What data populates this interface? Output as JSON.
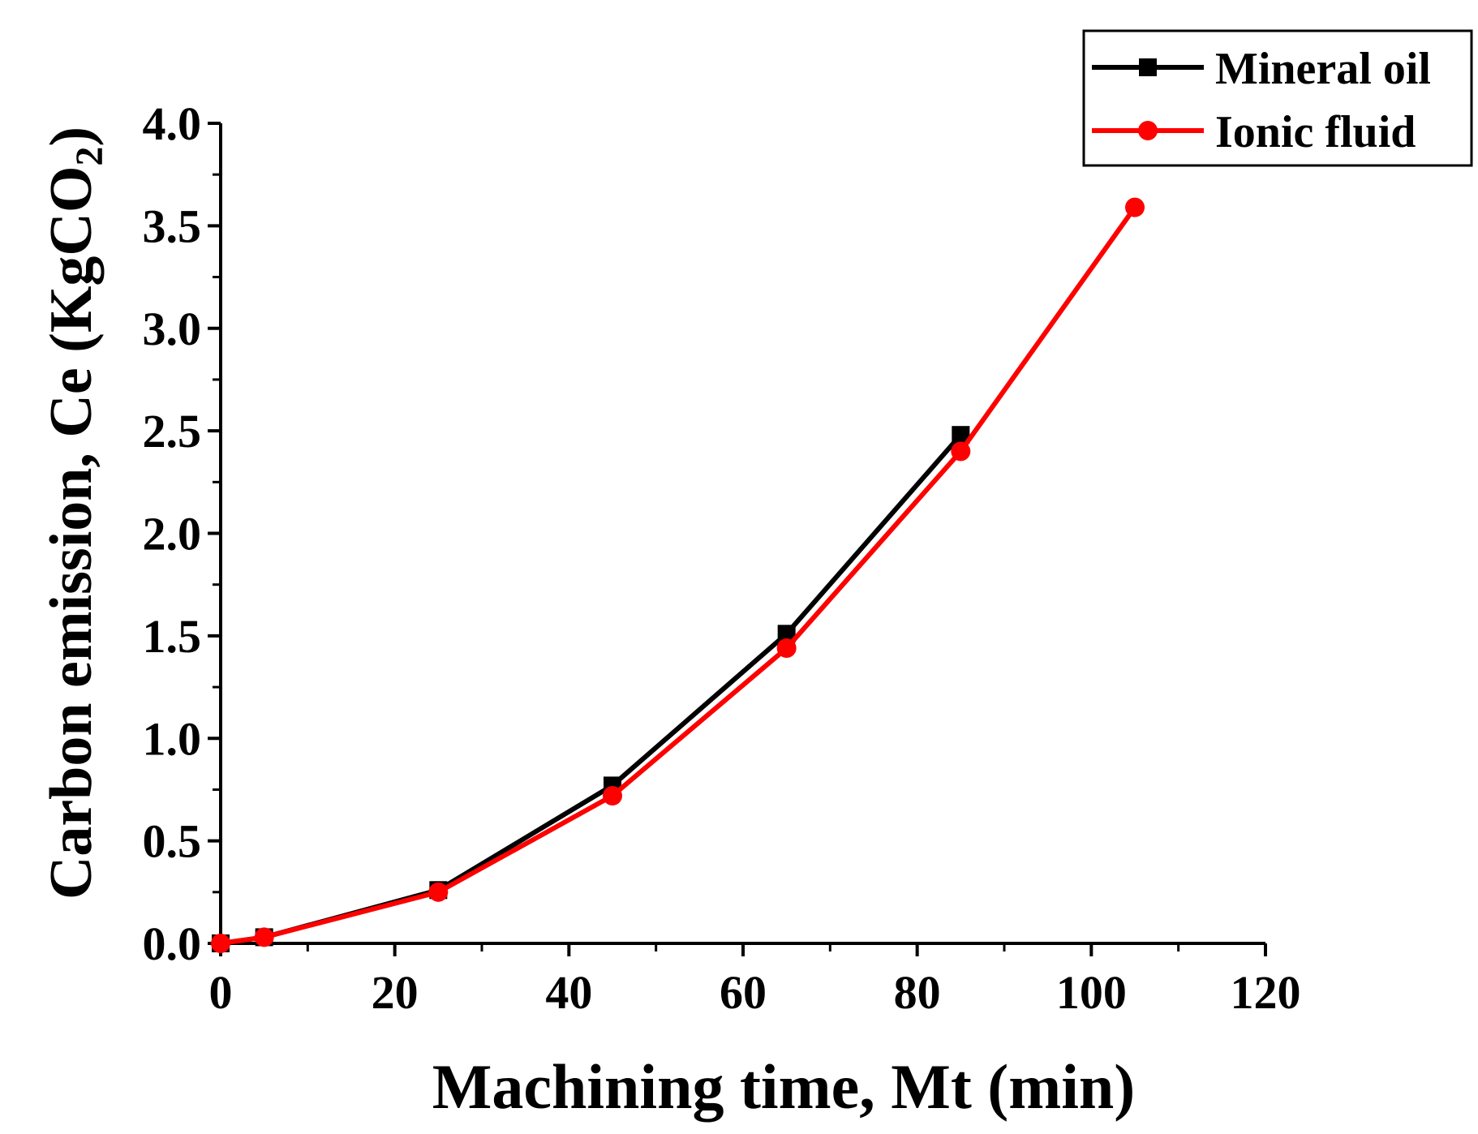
{
  "chart_data": {
    "type": "line",
    "title": "",
    "xlabel": "Machining time, Mt (min)",
    "ylabel": "Carbon emission, Ce (KgCO",
    "ylabel_subscript": "2",
    "ylabel_close": ")",
    "xlim": [
      0,
      120
    ],
    "ylim": [
      0,
      4.0
    ],
    "x_ticks": [
      0,
      20,
      40,
      60,
      80,
      100,
      120
    ],
    "x_tick_labels": [
      "0",
      "20",
      "40",
      "60",
      "80",
      "100",
      "120"
    ],
    "y_ticks": [
      0.0,
      0.5,
      1.0,
      1.5,
      2.0,
      2.5,
      3.0,
      3.5,
      4.0
    ],
    "y_tick_labels": [
      "0.0",
      "0.5",
      "1.0",
      "1.5",
      "2.0",
      "2.5",
      "3.0",
      "3.5",
      "4.0"
    ],
    "grid": false,
    "legend_position": "top-right",
    "series": [
      {
        "name": "Mineral oil",
        "color": "#000000",
        "marker": "square",
        "x": [
          0,
          5,
          25,
          45,
          65,
          85
        ],
        "y": [
          0.0,
          0.03,
          0.26,
          0.77,
          1.51,
          2.48
        ]
      },
      {
        "name": "Ionic fluid",
        "color": "#ff0000",
        "marker": "circle",
        "x": [
          0,
          5,
          25,
          45,
          65,
          85,
          105
        ],
        "y": [
          0.0,
          0.03,
          0.25,
          0.72,
          1.44,
          2.4,
          3.59
        ]
      }
    ]
  }
}
